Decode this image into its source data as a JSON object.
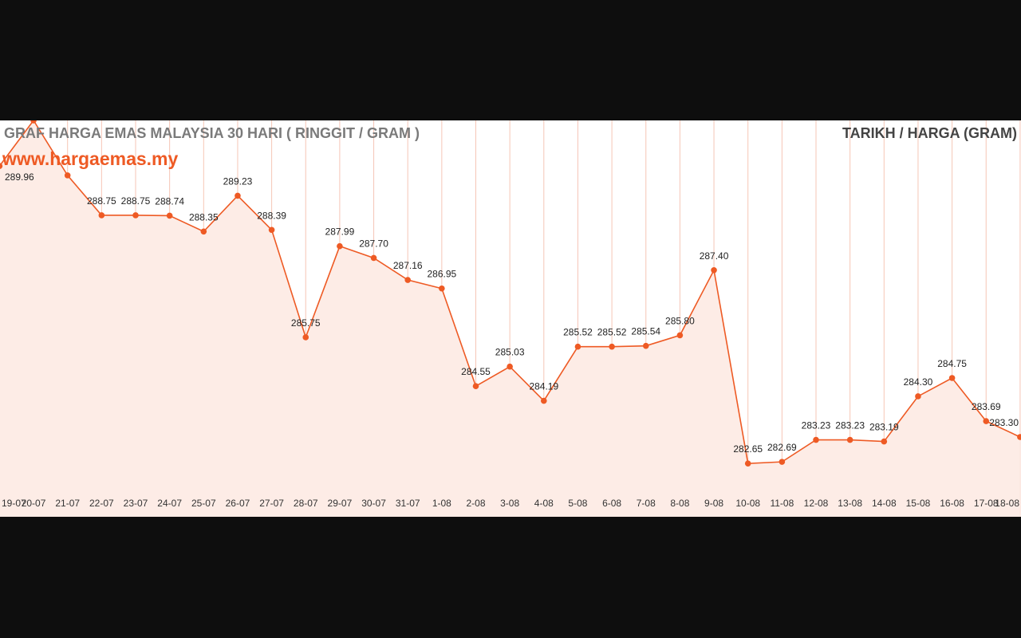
{
  "chart_data": {
    "type": "area",
    "title": "GRAF HARGA EMAS MALAYSIA 30 HARI ( RINGGIT / GRAM )",
    "legend_right": "TARIKH / HARGA (GRAM)",
    "watermark": "www.hargaemas.my",
    "categories": [
      "19-07",
      "20-07",
      "21-07",
      "22-07",
      "23-07",
      "24-07",
      "25-07",
      "26-07",
      "27-07",
      "28-07",
      "29-07",
      "30-07",
      "31-07",
      "1-08",
      "2-08",
      "3-08",
      "4-08",
      "5-08",
      "6-08",
      "7-08",
      "8-08",
      "9-08",
      "10-08",
      "11-08",
      "12-08",
      "13-08",
      "14-08",
      "15-08",
      "16-08",
      "17-08",
      "18-08"
    ],
    "values": [
      289.96,
      291.08,
      289.73,
      288.75,
      288.75,
      288.74,
      288.35,
      289.23,
      288.39,
      285.75,
      287.99,
      287.7,
      287.16,
      286.95,
      284.55,
      285.03,
      284.19,
      285.52,
      285.52,
      285.54,
      285.8,
      287.4,
      282.65,
      282.69,
      283.23,
      283.23,
      283.19,
      284.3,
      284.75,
      283.69,
      283.3
    ],
    "labels": [
      "289.96",
      "",
      "",
      "288.75",
      "288.75",
      "288.74",
      "288.35",
      "289.23",
      "288.39",
      "285.75",
      "287.99",
      "287.70",
      "287.16",
      "286.95",
      "284.55",
      "285.03",
      "284.19",
      "285.52",
      "285.52",
      "285.54",
      "285.80",
      "287.40",
      "282.65",
      "282.69",
      "283.23",
      "283.23",
      "283.19",
      "284.30",
      "284.75",
      "283.69",
      "283.30"
    ],
    "ylim": [
      281.34,
      291.08
    ],
    "grid": "vertical",
    "colors": {
      "line": "#ee5a24",
      "fill": "#fdece6",
      "grid": "#f6c6b6"
    }
  }
}
